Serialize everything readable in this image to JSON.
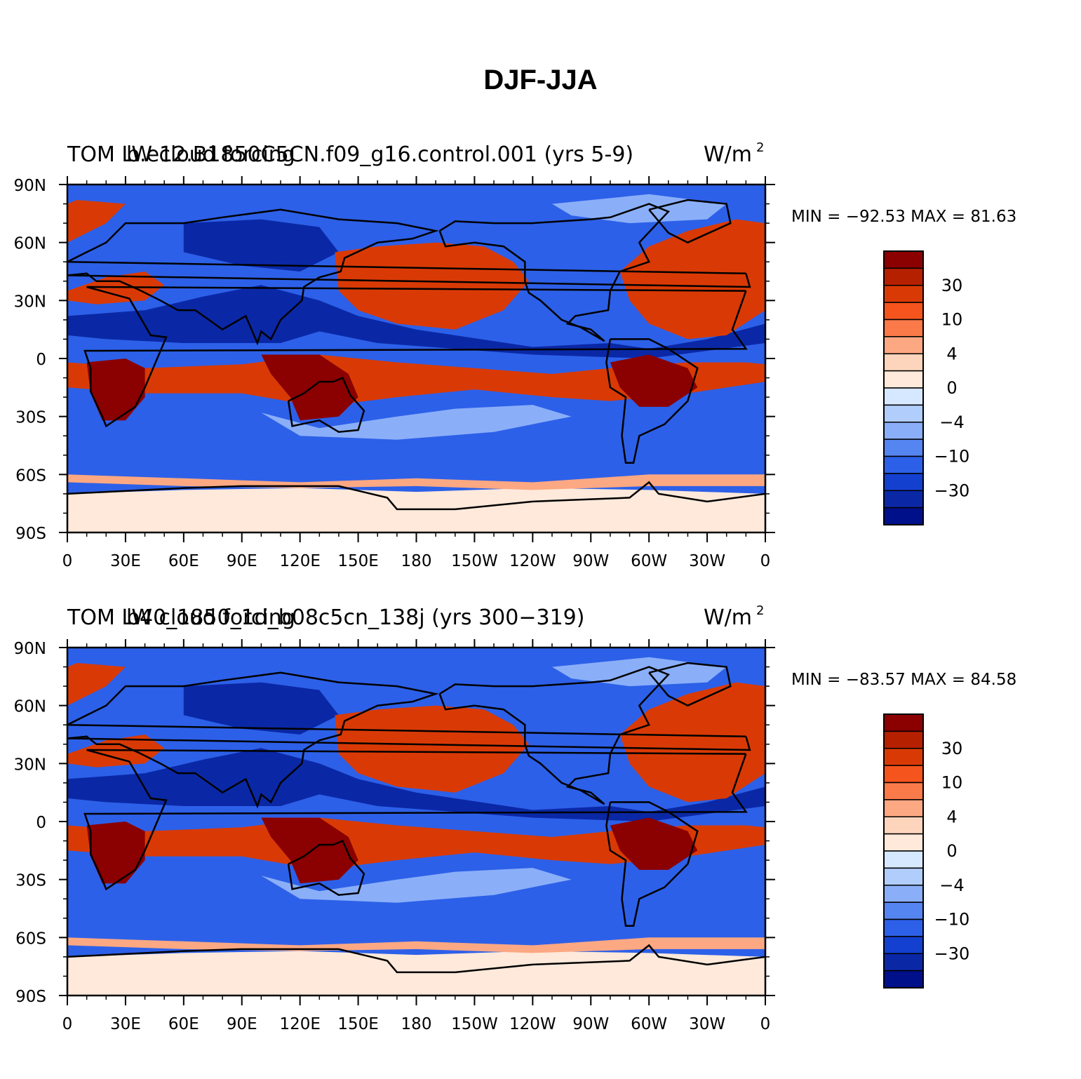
{
  "title": "DJF-JJA",
  "panels": [
    {
      "id": "top",
      "left_label": "TOM LW cloud forcing",
      "center_label": "b.e12.B1850C5CN.f09_g16.control.001 (yrs 5-9)",
      "units_label": "W/m",
      "units_exp": "2",
      "stats": "MIN = −92.53 MAX =   81.63"
    },
    {
      "id": "bottom",
      "left_label": "TOM LW cloud forcing",
      "center_label": "b40_1850_1d_b08c5cn_138j (yrs 300−319)",
      "units_label": "W/m",
      "units_exp": "2",
      "stats": "MIN = −83.57 MAX =   84.58"
    }
  ],
  "lat_ticks": [
    "90N",
    "60N",
    "30N",
    "0",
    "30S",
    "60S",
    "90S"
  ],
  "lon_ticks": [
    "0",
    "30E",
    "60E",
    "90E",
    "120E",
    "150E",
    "180",
    "150W",
    "120W",
    "90W",
    "60W",
    "30W",
    "0"
  ],
  "colorbar": {
    "labels": [
      "30",
      "10",
      "4",
      "0",
      "−4",
      "−10",
      "−30"
    ],
    "colors": [
      "#8b0000",
      "#b52000",
      "#d93a05",
      "#f5541c",
      "#fb7a4a",
      "#fca882",
      "#fdd5bd",
      "#fee9da",
      "#d6e8ff",
      "#b0cdfc",
      "#8aaff8",
      "#5585f0",
      "#2d60e8",
      "#1440d0",
      "#0a28a6",
      "#00108a"
    ]
  },
  "map_colors": {
    "ocean_blue": "#2d60e8",
    "deep_blue": "#0a28a6",
    "light_blue": "#8aaff8",
    "pale": "#fee9da",
    "salmon": "#fca882",
    "orange": "#d93a05",
    "darkred": "#8b0000",
    "coast": "#000000"
  }
}
